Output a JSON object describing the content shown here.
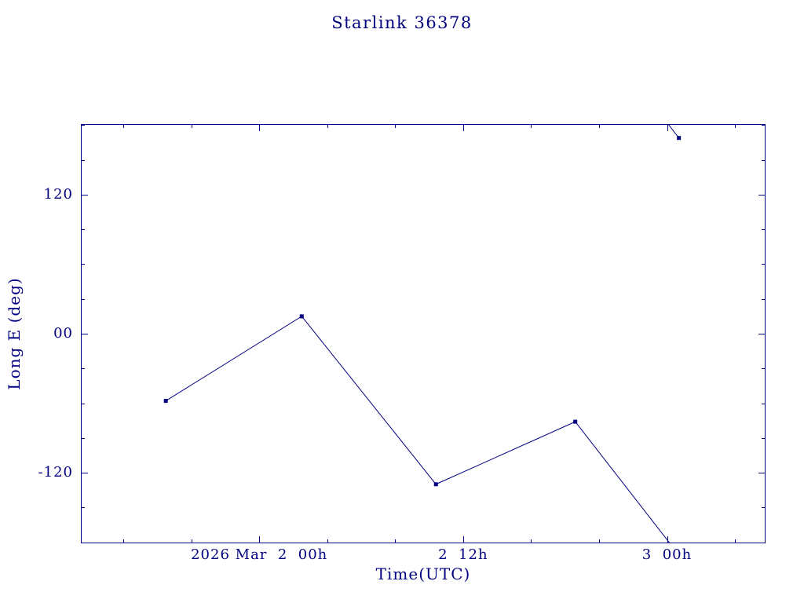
{
  "chart_data": {
    "type": "line",
    "title": "Starlink 36378",
    "xlabel": "Time(UTC)",
    "ylabel": "Long E (deg)",
    "color": "#000080",
    "background": "#ffffff",
    "marker": "filled-square",
    "grid": false,
    "legend": "none",
    "x_axis": {
      "unit": "hours relative to 2026 Mar 2 00h UTC",
      "range_hours": [
        -10.5,
        29.8
      ],
      "ticks": [
        {
          "t": 0,
          "label": "2026 Mar  2  00h"
        },
        {
          "t": 12,
          "label": "2  12h"
        },
        {
          "t": 24,
          "label": "3  00h"
        }
      ],
      "minor_tick_step_hours": 4
    },
    "y_axis": {
      "unit": "degrees east longitude",
      "range_deg": [
        -181,
        181
      ],
      "ticks": [
        {
          "value": 120,
          "label": "120"
        },
        {
          "value": 0,
          "label": "00"
        },
        {
          "value": -120,
          "label": "-120"
        }
      ],
      "minor_tick_step_deg": 30
    },
    "series": [
      {
        "name": "Starlink 36378 longitude east",
        "wrap_at_deg": 180,
        "points": [
          {
            "t": -5.5,
            "lon": -58
          },
          {
            "t": 2.5,
            "lon": 15
          },
          {
            "t": 10.4,
            "lon": -130
          },
          {
            "t": 18.6,
            "lon": -76
          },
          {
            "t": 24.7,
            "lon": 169
          }
        ]
      }
    ]
  }
}
